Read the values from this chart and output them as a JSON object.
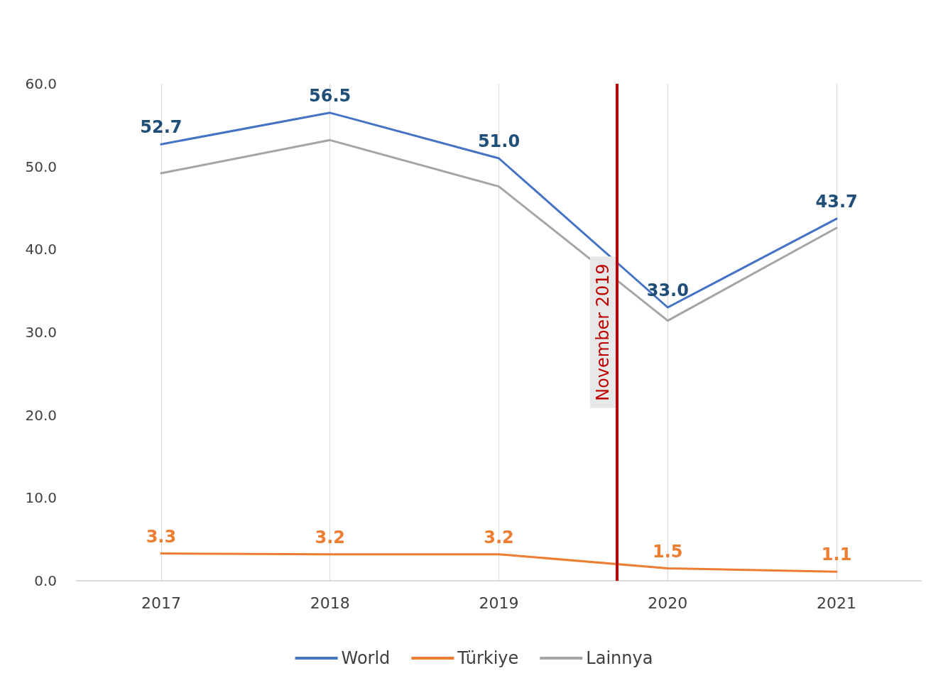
{
  "chart_data": {
    "type": "line",
    "x": [
      2017,
      2018,
      2019,
      2020,
      2021
    ],
    "xlim": [
      2016.5,
      2021.5
    ],
    "xticks": [
      2017,
      2018,
      2019,
      2020,
      2021
    ],
    "ylim": [
      0,
      60
    ],
    "yticks": [
      {
        "value": 0,
        "label": "0.0"
      },
      {
        "value": 10,
        "label": "10.0"
      },
      {
        "value": 20,
        "label": "20.0"
      },
      {
        "value": 30,
        "label": "30.0"
      },
      {
        "value": 40,
        "label": "40.0"
      },
      {
        "value": 50,
        "label": "50.0"
      },
      {
        "value": 60,
        "label": "60.0"
      }
    ],
    "series": [
      {
        "name": "World",
        "color": "#4472c4",
        "values": [
          52.7,
          56.5,
          51.0,
          33.0,
          43.7
        ],
        "value_labels": [
          "52.7",
          "56.5",
          "51.0",
          "33.0",
          "43.7"
        ]
      },
      {
        "name": "Türkiye",
        "color": "#ed7d31",
        "values": [
          3.3,
          3.2,
          3.2,
          1.5,
          1.1
        ],
        "value_labels": [
          "3.3",
          "3.2",
          "3.2",
          "1.5",
          "1.1"
        ]
      },
      {
        "name": "Lainnya",
        "color": "#a5a5a5",
        "values": [
          49.2,
          53.2,
          47.6,
          31.4,
          42.6
        ]
      }
    ],
    "ref_lines": [
      {
        "axis": "x",
        "value": 2019.7,
        "label": "November 2019",
        "color": "#c00000"
      }
    ],
    "grid": "x",
    "legend": "bottom",
    "marker": "none",
    "line_style": "solid"
  }
}
